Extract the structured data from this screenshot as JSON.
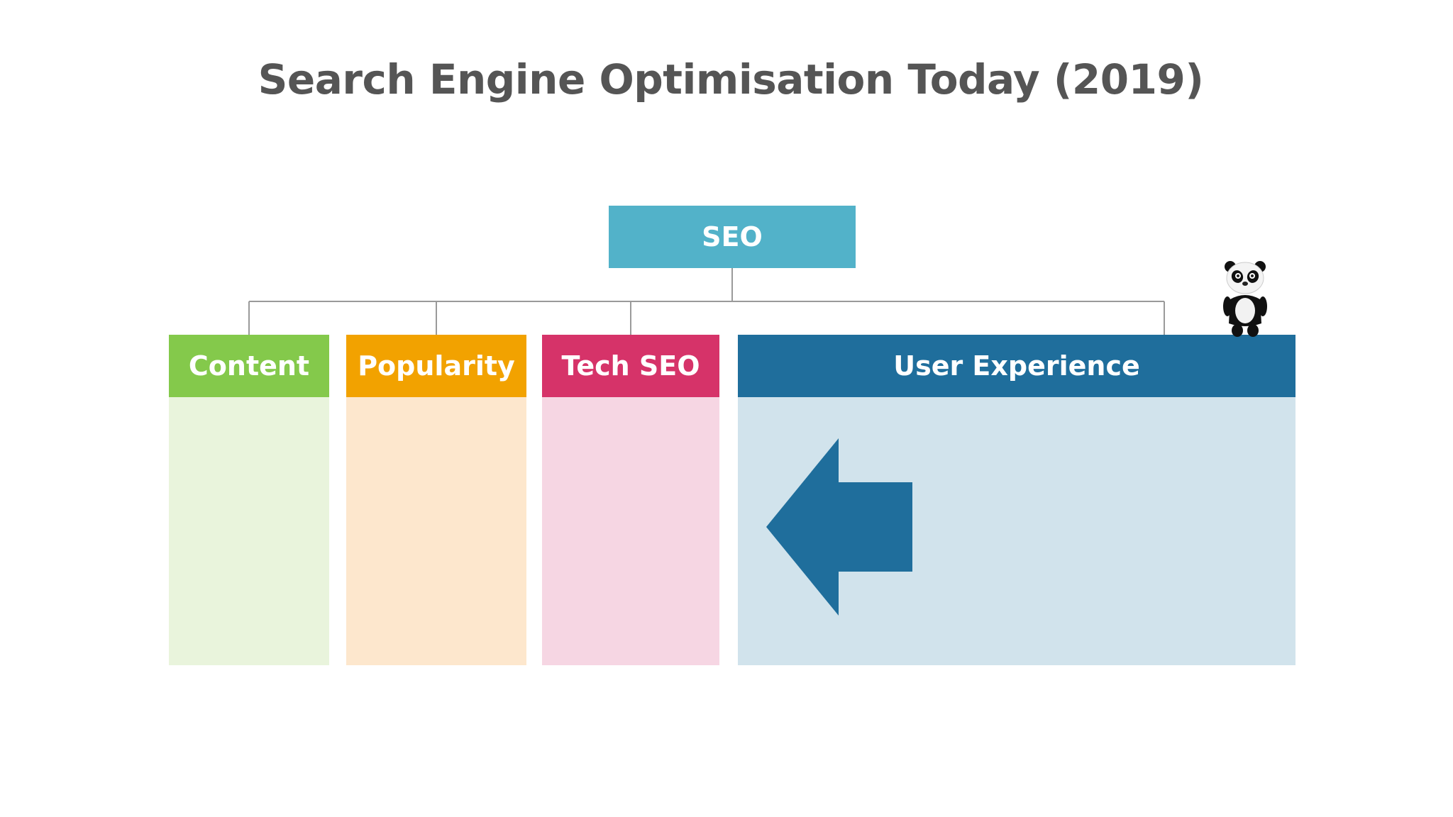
{
  "title": "Search Engine Optimisation Today (2019)",
  "root": {
    "label": "SEO",
    "color": "#52b2c9"
  },
  "categories": [
    {
      "label": "Content",
      "header_color": "#84c94b",
      "body_color": "#e9f4dc"
    },
    {
      "label": "Popularity",
      "header_color": "#f2a200",
      "body_color": "#fde7cd"
    },
    {
      "label": "Tech SEO",
      "header_color": "#d63369",
      "body_color": "#f6d6e3"
    },
    {
      "label": "User Experience",
      "header_color": "#1f6e9c",
      "body_color": "#d1e3ec"
    }
  ],
  "arrow": {
    "direction": "left",
    "color": "#1f6e9c"
  },
  "mascot": "panda-icon"
}
